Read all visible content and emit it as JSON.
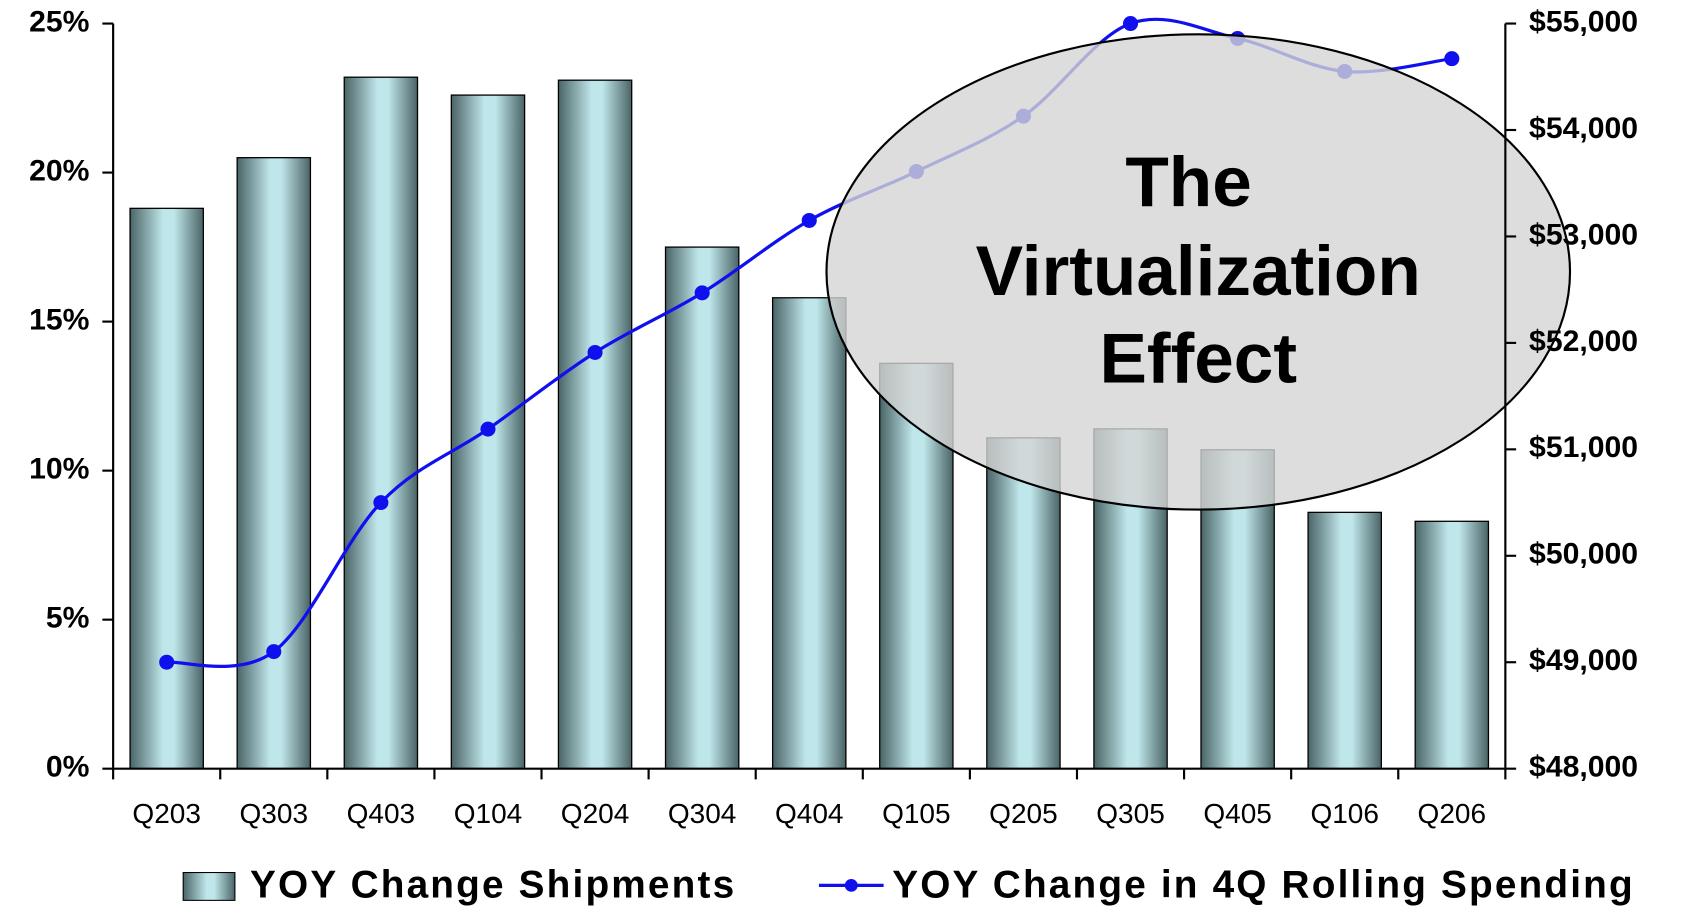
{
  "chart_data": {
    "type": "bar_line",
    "categories": [
      "Q203",
      "Q303",
      "Q403",
      "Q104",
      "Q204",
      "Q304",
      "Q404",
      "Q105",
      "Q205",
      "Q305",
      "Q405",
      "Q106",
      "Q206"
    ],
    "series": [
      {
        "name": "YOY Change Shipments",
        "type": "bar",
        "color": "#b8e0e4",
        "values": [
          18.8,
          20.5,
          23.2,
          22.6,
          23.1,
          17.5,
          15.8,
          13.6,
          11.1,
          11.4,
          10.7,
          8.6,
          8.3
        ]
      },
      {
        "name": "YOY Change in 4Q Rolling Spending",
        "type": "line",
        "axis": "y2",
        "color": "#1010ee",
        "values": [
          49000,
          49100,
          50500,
          51190,
          51910,
          52470,
          53150,
          53610,
          54130,
          55000,
          54860,
          54550,
          54670
        ]
      }
    ],
    "ylim": [
      0,
      25
    ],
    "yticks": [
      {
        "value": 0,
        "label": "0%"
      },
      {
        "value": 5,
        "label": "5%"
      },
      {
        "value": 10,
        "label": "10%"
      },
      {
        "value": 15,
        "label": "15%"
      },
      {
        "value": 20,
        "label": "20%"
      },
      {
        "value": 25,
        "label": "25%"
      }
    ],
    "y2lim": [
      48000,
      55000
    ],
    "y2ticks": [
      {
        "value": 48000,
        "label": "$48,000"
      },
      {
        "value": 49000,
        "label": "$49,000"
      },
      {
        "value": 50000,
        "label": "$50,000"
      },
      {
        "value": 51000,
        "label": "$51,000"
      },
      {
        "value": 52000,
        "label": "$52,000"
      },
      {
        "value": 53000,
        "label": "$53,000"
      },
      {
        "value": 54000,
        "label": "$54,000"
      },
      {
        "value": 55000,
        "label": "$55,000"
      }
    ],
    "annotation": [
      "The",
      "Virtualization",
      "Effect"
    ],
    "legend": "bottom"
  }
}
